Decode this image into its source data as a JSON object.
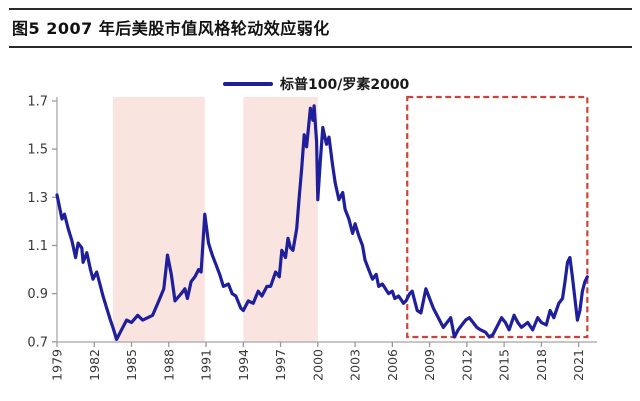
{
  "header": {
    "title": "图5  2007 年后美股市值风格轮动效应弱化"
  },
  "legend": {
    "label": "标普100/罗素2000"
  },
  "colors": {
    "series_line": "#1f1f9c",
    "highlight_band": "#fae4e0",
    "annotation_box": "#cc4437",
    "axis": "#b3b3b3",
    "tick": "#999999",
    "tick_text": "#3a3a3a",
    "rule": "#2b2b2b"
  },
  "chart_data": {
    "type": "line",
    "title": "图5  2007 年后美股市值风格轮动效应弱化",
    "xlabel": "",
    "ylabel": "",
    "grid": false,
    "legend_position": "top-center",
    "xlim": [
      1979,
      2021.8
    ],
    "ylim": [
      0.7,
      1.7
    ],
    "x_ticks": [
      1979,
      1982,
      1985,
      1988,
      1991,
      1994,
      1997,
      2000,
      2003,
      2006,
      2009,
      2012,
      2015,
      2018,
      2021
    ],
    "y_ticks": [
      0.7,
      0.9,
      1.1,
      1.3,
      1.5,
      1.7
    ],
    "highlight_bands": [
      {
        "x_from": 1983.5,
        "x_to": 1990.9,
        "color": "#fae4e0"
      },
      {
        "x_from": 1994.0,
        "x_to": 2000.0,
        "color": "#fae4e0"
      }
    ],
    "annotation_box": {
      "x_from": 2007.2,
      "x_to": 2021.7,
      "y_from": 0.72,
      "y_to": 1.72,
      "style": "dashed",
      "color": "#cc4437"
    },
    "series": [
      {
        "name": "标普100/罗素2000",
        "color": "#1f1f9c",
        "points": [
          [
            1979.0,
            1.31
          ],
          [
            1979.2,
            1.26
          ],
          [
            1979.4,
            1.21
          ],
          [
            1979.6,
            1.23
          ],
          [
            1979.9,
            1.17
          ],
          [
            1980.2,
            1.12
          ],
          [
            1980.5,
            1.05
          ],
          [
            1980.7,
            1.11
          ],
          [
            1981.0,
            1.09
          ],
          [
            1981.1,
            1.03
          ],
          [
            1981.4,
            1.07
          ],
          [
            1981.7,
            1.0
          ],
          [
            1981.9,
            0.96
          ],
          [
            1982.2,
            0.99
          ],
          [
            1982.5,
            0.93
          ],
          [
            1982.7,
            0.89
          ],
          [
            1983.0,
            0.84
          ],
          [
            1983.3,
            0.79
          ],
          [
            1983.5,
            0.76
          ],
          [
            1983.8,
            0.71
          ],
          [
            1984.1,
            0.74
          ],
          [
            1984.6,
            0.79
          ],
          [
            1985.0,
            0.78
          ],
          [
            1985.5,
            0.81
          ],
          [
            1985.9,
            0.79
          ],
          [
            1986.3,
            0.8
          ],
          [
            1986.7,
            0.81
          ],
          [
            1987.2,
            0.87
          ],
          [
            1987.6,
            0.92
          ],
          [
            1987.9,
            1.06
          ],
          [
            1988.2,
            0.98
          ],
          [
            1988.5,
            0.87
          ],
          [
            1989.0,
            0.9
          ],
          [
            1989.3,
            0.92
          ],
          [
            1989.5,
            0.88
          ],
          [
            1989.8,
            0.95
          ],
          [
            1990.1,
            0.97
          ],
          [
            1990.4,
            1.0
          ],
          [
            1990.6,
            0.99
          ],
          [
            1990.9,
            1.23
          ],
          [
            1991.2,
            1.11
          ],
          [
            1991.5,
            1.06
          ],
          [
            1991.8,
            1.02
          ],
          [
            1992.1,
            0.98
          ],
          [
            1992.4,
            0.93
          ],
          [
            1992.8,
            0.94
          ],
          [
            1993.1,
            0.9
          ],
          [
            1993.4,
            0.89
          ],
          [
            1993.8,
            0.84
          ],
          [
            1994.0,
            0.83
          ],
          [
            1994.4,
            0.87
          ],
          [
            1994.8,
            0.86
          ],
          [
            1995.2,
            0.91
          ],
          [
            1995.5,
            0.89
          ],
          [
            1995.9,
            0.93
          ],
          [
            1996.2,
            0.93
          ],
          [
            1996.6,
            0.99
          ],
          [
            1996.9,
            0.97
          ],
          [
            1997.1,
            1.08
          ],
          [
            1997.4,
            1.05
          ],
          [
            1997.6,
            1.13
          ],
          [
            1997.8,
            1.09
          ],
          [
            1998.0,
            1.08
          ],
          [
            1998.3,
            1.17
          ],
          [
            1998.5,
            1.3
          ],
          [
            1998.7,
            1.42
          ],
          [
            1998.9,
            1.56
          ],
          [
            1999.1,
            1.51
          ],
          [
            1999.4,
            1.67
          ],
          [
            1999.6,
            1.62
          ],
          [
            1999.7,
            1.68
          ],
          [
            1999.9,
            1.53
          ],
          [
            2000.0,
            1.29
          ],
          [
            2000.2,
            1.45
          ],
          [
            2000.4,
            1.59
          ],
          [
            2000.7,
            1.52
          ],
          [
            2000.9,
            1.55
          ],
          [
            2001.2,
            1.43
          ],
          [
            2001.4,
            1.36
          ],
          [
            2001.7,
            1.29
          ],
          [
            2002.0,
            1.32
          ],
          [
            2002.2,
            1.25
          ],
          [
            2002.5,
            1.21
          ],
          [
            2002.8,
            1.15
          ],
          [
            2003.0,
            1.19
          ],
          [
            2003.3,
            1.14
          ],
          [
            2003.6,
            1.1
          ],
          [
            2003.8,
            1.04
          ],
          [
            2004.1,
            1.0
          ],
          [
            2004.4,
            0.96
          ],
          [
            2004.7,
            0.98
          ],
          [
            2004.9,
            0.93
          ],
          [
            2005.2,
            0.94
          ],
          [
            2005.7,
            0.9
          ],
          [
            2006.0,
            0.91
          ],
          [
            2006.2,
            0.88
          ],
          [
            2006.5,
            0.89
          ],
          [
            2006.9,
            0.86
          ],
          [
            2007.1,
            0.87
          ],
          [
            2007.4,
            0.9
          ],
          [
            2007.6,
            0.91
          ],
          [
            2008.0,
            0.83
          ],
          [
            2008.3,
            0.82
          ],
          [
            2008.7,
            0.92
          ],
          [
            2009.0,
            0.88
          ],
          [
            2009.3,
            0.84
          ],
          [
            2009.7,
            0.8
          ],
          [
            2010.1,
            0.76
          ],
          [
            2010.4,
            0.78
          ],
          [
            2010.7,
            0.8
          ],
          [
            2011.0,
            0.72
          ],
          [
            2011.3,
            0.75
          ],
          [
            2011.6,
            0.77
          ],
          [
            2011.9,
            0.79
          ],
          [
            2012.2,
            0.8
          ],
          [
            2012.5,
            0.78
          ],
          [
            2012.8,
            0.76
          ],
          [
            2013.1,
            0.75
          ],
          [
            2013.5,
            0.74
          ],
          [
            2013.8,
            0.72
          ],
          [
            2014.1,
            0.73
          ],
          [
            2014.5,
            0.77
          ],
          [
            2014.8,
            0.8
          ],
          [
            2015.1,
            0.78
          ],
          [
            2015.4,
            0.75
          ],
          [
            2015.8,
            0.81
          ],
          [
            2016.1,
            0.78
          ],
          [
            2016.4,
            0.76
          ],
          [
            2016.9,
            0.78
          ],
          [
            2017.3,
            0.75
          ],
          [
            2017.7,
            0.8
          ],
          [
            2018.0,
            0.78
          ],
          [
            2018.4,
            0.77
          ],
          [
            2018.7,
            0.83
          ],
          [
            2019.0,
            0.8
          ],
          [
            2019.4,
            0.86
          ],
          [
            2019.7,
            0.88
          ],
          [
            2019.9,
            0.95
          ],
          [
            2020.1,
            1.03
          ],
          [
            2020.3,
            1.05
          ],
          [
            2020.5,
            0.97
          ],
          [
            2020.7,
            0.88
          ],
          [
            2020.9,
            0.79
          ],
          [
            2021.1,
            0.83
          ],
          [
            2021.3,
            0.91
          ],
          [
            2021.5,
            0.95
          ],
          [
            2021.7,
            0.97
          ]
        ]
      }
    ]
  }
}
